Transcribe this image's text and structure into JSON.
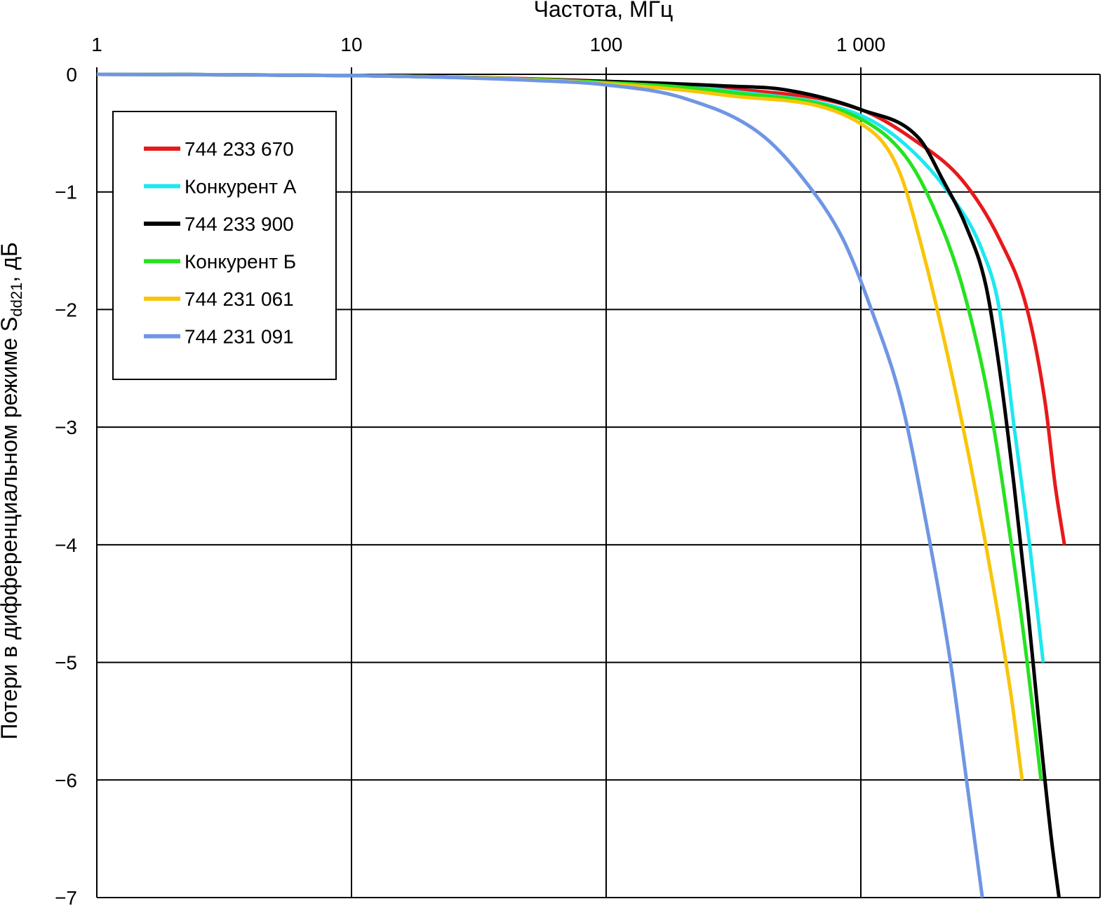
{
  "chart_data": {
    "type": "line",
    "title": "",
    "xlabel": "Частота, МГц",
    "ylabel_main": "Потери в дифференциальном режиме S",
    "ylabel_sub": "dd21",
    "ylabel_tail": ", дБ",
    "xscale": "log",
    "xlim": [
      1,
      8000
    ],
    "ylim": [
      -7,
      0
    ],
    "grid": true,
    "legend_position": "top-left",
    "x_ticks": [
      {
        "value": 1,
        "label": "1"
      },
      {
        "value": 10,
        "label": "10"
      },
      {
        "value": 100,
        "label": "100"
      },
      {
        "value": 1000,
        "label": "1 000"
      }
    ],
    "y_ticks": [
      {
        "value": 0,
        "label": "0"
      },
      {
        "value": -1,
        "label": "−1"
      },
      {
        "value": -2,
        "label": "−2"
      },
      {
        "value": -3,
        "label": "−3"
      },
      {
        "value": -4,
        "label": "−4"
      },
      {
        "value": -5,
        "label": "−5"
      },
      {
        "value": -6,
        "label": "−6"
      },
      {
        "value": -7,
        "label": "−7"
      }
    ],
    "series": [
      {
        "name": "744 233 670",
        "color": "#e8191b",
        "points": [
          [
            1,
            0
          ],
          [
            10,
            -0.01
          ],
          [
            100,
            -0.06
          ],
          [
            300,
            -0.12
          ],
          [
            1000,
            -0.3
          ],
          [
            1600,
            -0.55
          ],
          [
            2500,
            -0.9
          ],
          [
            3500,
            -1.4
          ],
          [
            4500,
            -2.0
          ],
          [
            5300,
            -2.8
          ],
          [
            5800,
            -3.5
          ],
          [
            6300,
            -4.0
          ]
        ]
      },
      {
        "name": "Конкурент А",
        "color": "#1ee8f0",
        "points": [
          [
            1,
            0
          ],
          [
            10,
            -0.01
          ],
          [
            100,
            -0.07
          ],
          [
            300,
            -0.14
          ],
          [
            1000,
            -0.35
          ],
          [
            1500,
            -0.6
          ],
          [
            2200,
            -1.0
          ],
          [
            3000,
            -1.5
          ],
          [
            3500,
            -2.0
          ],
          [
            4000,
            -3.0
          ],
          [
            4600,
            -4.0
          ],
          [
            5200,
            -5.0
          ]
        ]
      },
      {
        "name": "744 233 900",
        "color": "#000000",
        "points": [
          [
            1,
            0
          ],
          [
            10,
            -0.01
          ],
          [
            100,
            -0.06
          ],
          [
            300,
            -0.1
          ],
          [
            500,
            -0.13
          ],
          [
            1000,
            -0.3
          ],
          [
            1700,
            -0.55
          ],
          [
            2100,
            -0.9
          ],
          [
            2600,
            -1.3
          ],
          [
            3100,
            -1.8
          ],
          [
            3500,
            -2.5
          ],
          [
            4000,
            -3.5
          ],
          [
            4500,
            -4.5
          ],
          [
            5000,
            -5.5
          ],
          [
            5600,
            -6.5
          ],
          [
            6000,
            -7.0
          ]
        ]
      },
      {
        "name": "Конкурент Б",
        "color": "#26e21f",
        "points": [
          [
            1,
            0
          ],
          [
            10,
            -0.01
          ],
          [
            100,
            -0.07
          ],
          [
            300,
            -0.15
          ],
          [
            1000,
            -0.38
          ],
          [
            1500,
            -0.7
          ],
          [
            1900,
            -1.1
          ],
          [
            2500,
            -1.8
          ],
          [
            3200,
            -2.8
          ],
          [
            3900,
            -4.0
          ],
          [
            4500,
            -5.0
          ],
          [
            5100,
            -6.0
          ]
        ]
      },
      {
        "name": "744 231 061",
        "color": "#f8c50a",
        "points": [
          [
            1,
            0
          ],
          [
            10,
            -0.01
          ],
          [
            100,
            -0.08
          ],
          [
            300,
            -0.18
          ],
          [
            1000,
            -0.42
          ],
          [
            1400,
            -0.8
          ],
          [
            1750,
            -1.5
          ],
          [
            2250,
            -2.5
          ],
          [
            2800,
            -3.5
          ],
          [
            3400,
            -4.5
          ],
          [
            3900,
            -5.3
          ],
          [
            4300,
            -6.0
          ]
        ]
      },
      {
        "name": "744 231 091",
        "color": "#6f96e4",
        "points": [
          [
            1,
            0
          ],
          [
            10,
            -0.01
          ],
          [
            50,
            -0.05
          ],
          [
            100,
            -0.09
          ],
          [
            200,
            -0.2
          ],
          [
            400,
            -0.5
          ],
          [
            600,
            -0.9
          ],
          [
            850,
            -1.4
          ],
          [
            1100,
            -2.0
          ],
          [
            1450,
            -2.8
          ],
          [
            1800,
            -3.8
          ],
          [
            2250,
            -5.0
          ],
          [
            2600,
            -6.0
          ],
          [
            3000,
            -7.0
          ]
        ]
      }
    ]
  }
}
